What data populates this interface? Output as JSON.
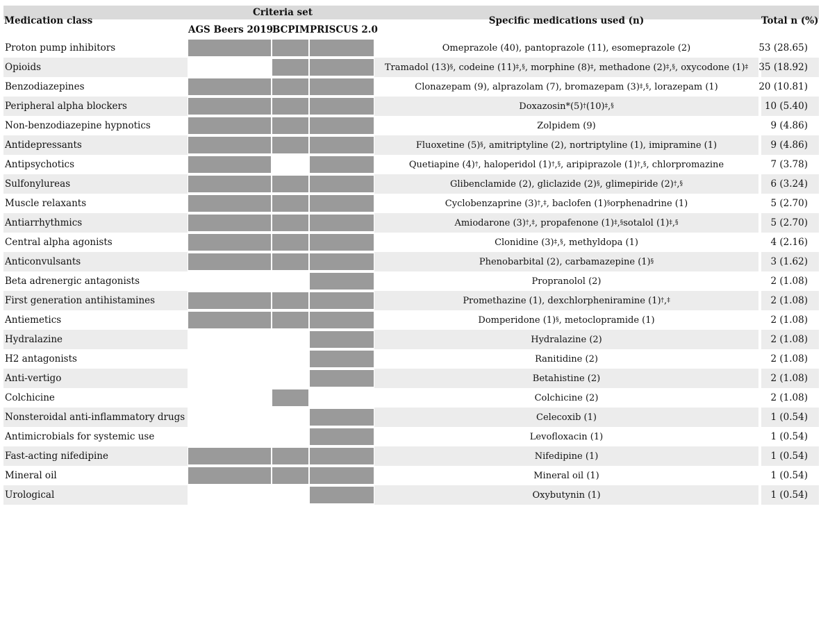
{
  "table": {
    "headers": {
      "medication_class": "Medication class",
      "criteria_set": "Criteria set",
      "criteria_columns": [
        "AGS Beers 2019",
        "BCPIM",
        "PRISCUS 2.0"
      ],
      "specific_medications": "Specific medications used (n)",
      "total": "Total n (%)"
    },
    "colors": {
      "criteria_mark": "#9a9a9a",
      "row_stripe": "#ececec",
      "header_band": "#dadada"
    },
    "rows": [
      {
        "medication_class": "Proton pump inhibitors",
        "criteria": [
          true,
          true,
          true
        ],
        "medications": "Omeprazole (40), pantoprazole (11), esomeprazole (2)",
        "total": "53 (28.65)"
      },
      {
        "medication_class": "Opioids",
        "criteria": [
          false,
          true,
          true
        ],
        "medications": "Tramadol (13)^{§}, codeine (11)^{‡}, ^{§}, morphine (8)^{‡}, methadone (2)^{‡}, ^{§}, oxycodone (1)^{‡}",
        "total": "35 (18.92)"
      },
      {
        "medication_class": "Benzodiazepines",
        "criteria": [
          true,
          true,
          true
        ],
        "medications": "Clonazepam (9), alprazolam (7), bromazepam (3)^{‡}, ^{§}, lorazepam (1)",
        "total": "20 (10.81)"
      },
      {
        "medication_class": "Peripheral alpha blockers",
        "criteria": [
          true,
          true,
          true
        ],
        "medications": "Doxazosin*(5)^{†} (10)^{‡}, ^{§}",
        "total": "10 (5.40)"
      },
      {
        "medication_class": "Non-benzodiazepine hypnotics",
        "criteria": [
          true,
          true,
          true
        ],
        "medications": "Zolpidem (9)",
        "total": "9 (4.86)"
      },
      {
        "medication_class": "Antidepressants",
        "criteria": [
          true,
          true,
          true
        ],
        "medications": "Fluoxetine (5)^{§}, amitriptyline (2), nortriptyline (1), imipramine (1)",
        "total": "9 (4.86)"
      },
      {
        "medication_class": "Antipsychotics",
        "criteria": [
          true,
          false,
          true
        ],
        "medications": "Quetiapine (4)^{†}, haloperidol (1)^{†}, ^{§}, aripiprazole (1)^{†}, ^{§}, chlorpromazine",
        "total": "7 (3.78)"
      },
      {
        "medication_class": "Sulfonylureas",
        "criteria": [
          true,
          true,
          true
        ],
        "medications": "Glibenclamide (2), gliclazide (2)^{§}, glimepiride (2)^{†}, ^{§}",
        "total": "6 (3.24)"
      },
      {
        "medication_class": "Muscle relaxants",
        "criteria": [
          true,
          true,
          true
        ],
        "medications": "Cyclobenzaprine (3)^{†}, ^{‡}, baclofen (1)^{§} orphenadrine (1)",
        "total": "5 (2.70)"
      },
      {
        "medication_class": "Antiarrhythmics",
        "criteria": [
          true,
          true,
          true
        ],
        "medications": "Amiodarone (3)^{†}, ^{‡}, propafenone (1)^{‡}, ^{§} sotalol (1)^{‡}, ^{§}",
        "total": "5 (2.70)"
      },
      {
        "medication_class": "Central alpha agonists",
        "criteria": [
          true,
          true,
          true
        ],
        "medications": "Clonidine (3)^{‡}, ^{§}, methyldopa (1)",
        "total": "4 (2.16)"
      },
      {
        "medication_class": "Anticonvulsants",
        "criteria": [
          true,
          true,
          true
        ],
        "medications": "Phenobarbital (2), carbamazepine (1)^{§}",
        "total": "3 (1.62)"
      },
      {
        "medication_class": "Beta adrenergic antagonists",
        "criteria": [
          false,
          false,
          true
        ],
        "medications": "Propranolol (2)",
        "total": "2 (1.08)"
      },
      {
        "medication_class": "First generation antihistamines",
        "criteria": [
          true,
          true,
          true
        ],
        "medications": "Promethazine (1), dexchlorpheniramine (1)^{†}, ^{‡}",
        "total": "2 (1.08)"
      },
      {
        "medication_class": "Antiemetics",
        "criteria": [
          true,
          true,
          true
        ],
        "medications": "Domperidone (1)^{§}, metoclopramide (1)",
        "total": "2 (1.08)"
      },
      {
        "medication_class": "Hydralazine",
        "criteria": [
          false,
          false,
          true
        ],
        "medications": "Hydralazine (2)",
        "total": "2 (1.08)"
      },
      {
        "medication_class": "H2 antagonists",
        "criteria": [
          false,
          false,
          true
        ],
        "medications": "Ranitidine (2)",
        "total": "2 (1.08)"
      },
      {
        "medication_class": "Anti-vertigo",
        "criteria": [
          false,
          false,
          true
        ],
        "medications": "Betahistine (2)",
        "total": "2 (1.08)"
      },
      {
        "medication_class": "Colchicine",
        "criteria": [
          false,
          true,
          false
        ],
        "medications": "Colchicine (2)",
        "total": "2 (1.08)"
      },
      {
        "medication_class": "Nonsteroidal anti-inflammatory drugs",
        "criteria": [
          false,
          false,
          true
        ],
        "medications": "Celecoxib (1)",
        "total": "1 (0.54)"
      },
      {
        "medication_class": "Antimicrobials for systemic use",
        "criteria": [
          false,
          false,
          true
        ],
        "medications": "Levofloxacin (1)",
        "total": "1 (0.54)"
      },
      {
        "medication_class": "Fast-acting nifedipine",
        "criteria": [
          true,
          true,
          true
        ],
        "medications": "Nifedipine (1)",
        "total": "1 (0.54)"
      },
      {
        "medication_class": "Mineral oil",
        "criteria": [
          true,
          true,
          true
        ],
        "medications": "Mineral oil (1)",
        "total": "1 (0.54)"
      },
      {
        "medication_class": "Urological",
        "criteria": [
          false,
          false,
          true
        ],
        "medications": "Oxybutynin (1)",
        "total": "1 (0.54)"
      }
    ]
  }
}
